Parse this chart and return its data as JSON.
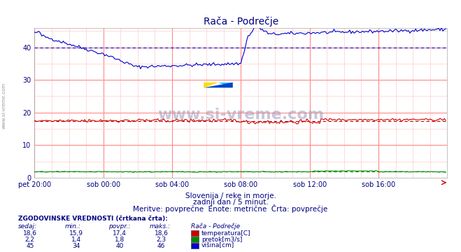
{
  "title": "Rača - Podrečje",
  "title_color": "#000080",
  "bg_color": "#ffffff",
  "plot_bg_color": "#ffffff",
  "grid_color_major": "#ff8888",
  "grid_color_minor": "#ffcccc",
  "xlabel_ticks": [
    "pet 20:00",
    "sob 00:00",
    "sob 04:00",
    "sob 08:00",
    "sob 12:00",
    "sob 16:00"
  ],
  "ylim": [
    0,
    46
  ],
  "xlim": [
    0,
    288
  ],
  "subtitle1": "Slovenija / reke in morje.",
  "subtitle2": "zadnji dan / 5 minut.",
  "subtitle3": "Meritve: povprečne  Enote: metrične  Črta: povprečje",
  "watermark": "www.si-vreme.com",
  "table_header": "ZGODOVINSKE VREDNOSTI (črtkana črta):",
  "table_col0": "sedaj:",
  "table_col1": "min.:",
  "table_col2": "povpr.:",
  "table_col3": "maks.:",
  "table_col4": "Rača - Podrečje",
  "rows": [
    {
      "sedaj": "18,6",
      "min": "15,9",
      "povpr": "17,4",
      "maks": "18,6",
      "label": "temperatura[C]",
      "color": "#cc0000"
    },
    {
      "sedaj": "2,2",
      "min": "1,4",
      "povpr": "1,8",
      "maks": "2,3",
      "label": "pretok[m3/s]",
      "color": "#008800"
    },
    {
      "sedaj": "45",
      "min": "34",
      "povpr": "40",
      "maks": "46",
      "label": "višina[cm]",
      "color": "#0000cc"
    }
  ],
  "temp_color": "#cc0000",
  "flow_color": "#008800",
  "height_color": "#0000cc",
  "temp_avg": 17.4,
  "flow_avg": 1.8,
  "height_avg": 40.0,
  "n_points": 288,
  "text_color": "#000080",
  "side_label": "www.si-vreme.com"
}
